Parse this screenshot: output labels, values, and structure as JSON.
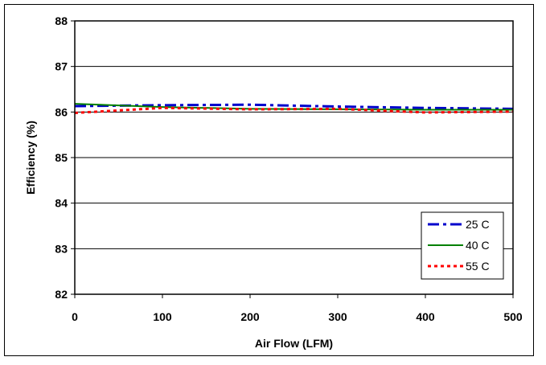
{
  "chart_data": {
    "type": "line",
    "xlabel": "Air Flow (LFM)",
    "ylabel": "Efficiency (%)",
    "xlim": [
      0,
      500
    ],
    "ylim": [
      82,
      88
    ],
    "x_ticks": [
      0,
      100,
      200,
      300,
      400,
      500
    ],
    "y_ticks": [
      82,
      83,
      84,
      85,
      86,
      87,
      88
    ],
    "grid": "horizontal",
    "legend_position": "bottom-right",
    "series": [
      {
        "name": "25 C",
        "color": "#0000cc",
        "style": "dash-dot",
        "x": [
          0,
          100,
          200,
          300,
          400,
          500
        ],
        "y": [
          86.13,
          86.15,
          86.16,
          86.12,
          86.09,
          86.07
        ]
      },
      {
        "name": "40 C",
        "color": "#008000",
        "style": "solid",
        "x": [
          0,
          100,
          200,
          300,
          400,
          500
        ],
        "y": [
          86.18,
          86.11,
          86.07,
          86.06,
          86.05,
          86.05
        ]
      },
      {
        "name": "55 C",
        "color": "#ff0000",
        "style": "dotted",
        "x": [
          0,
          100,
          200,
          300,
          400,
          500
        ],
        "y": [
          85.98,
          86.09,
          86.06,
          86.07,
          85.99,
          86.01
        ]
      }
    ]
  }
}
